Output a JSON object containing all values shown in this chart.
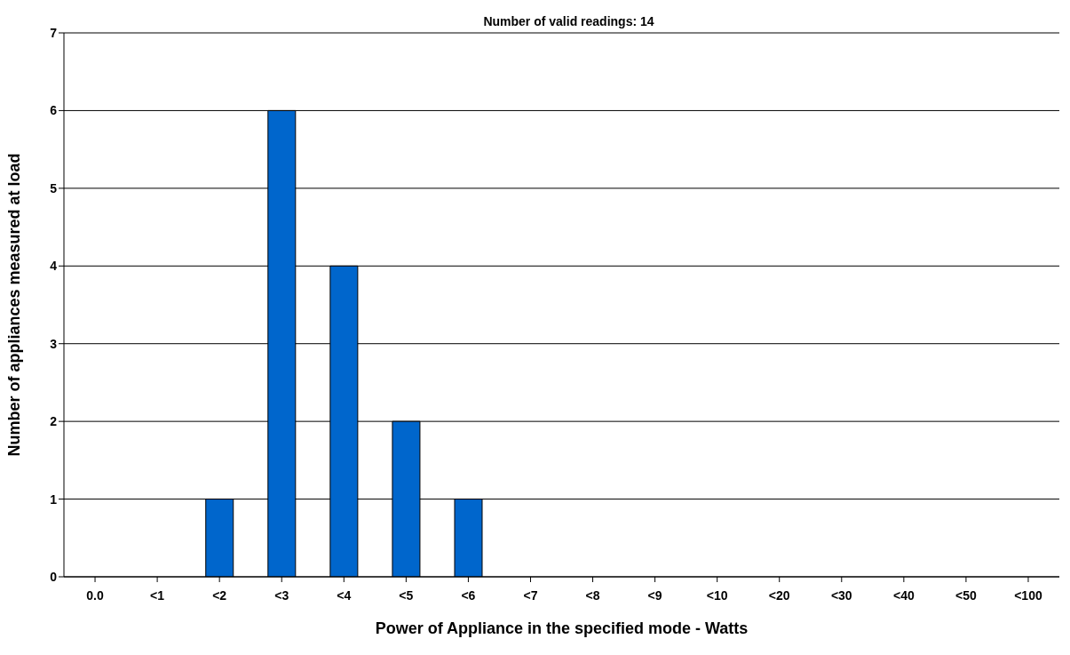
{
  "chart_data": {
    "type": "bar",
    "title": "Number of valid readings: 14",
    "xlabel": "Power of Appliance in the specified mode - Watts",
    "ylabel": "Number of appliances measured at load",
    "categories": [
      "0.0",
      "<1",
      "<2",
      "<3",
      "<4",
      "<5",
      "<6",
      "<7",
      "<8",
      "<9",
      "<10",
      "<20",
      "<30",
      "<40",
      "<50",
      "<100"
    ],
    "values": [
      0,
      0,
      1,
      6,
      4,
      2,
      1,
      0,
      0,
      0,
      0,
      0,
      0,
      0,
      0,
      0
    ],
    "color": "#0066cc",
    "ylim": [
      0,
      7
    ],
    "yticks": [
      0,
      1,
      2,
      3,
      4,
      5,
      6,
      7
    ],
    "grid": "y",
    "legend": false
  }
}
